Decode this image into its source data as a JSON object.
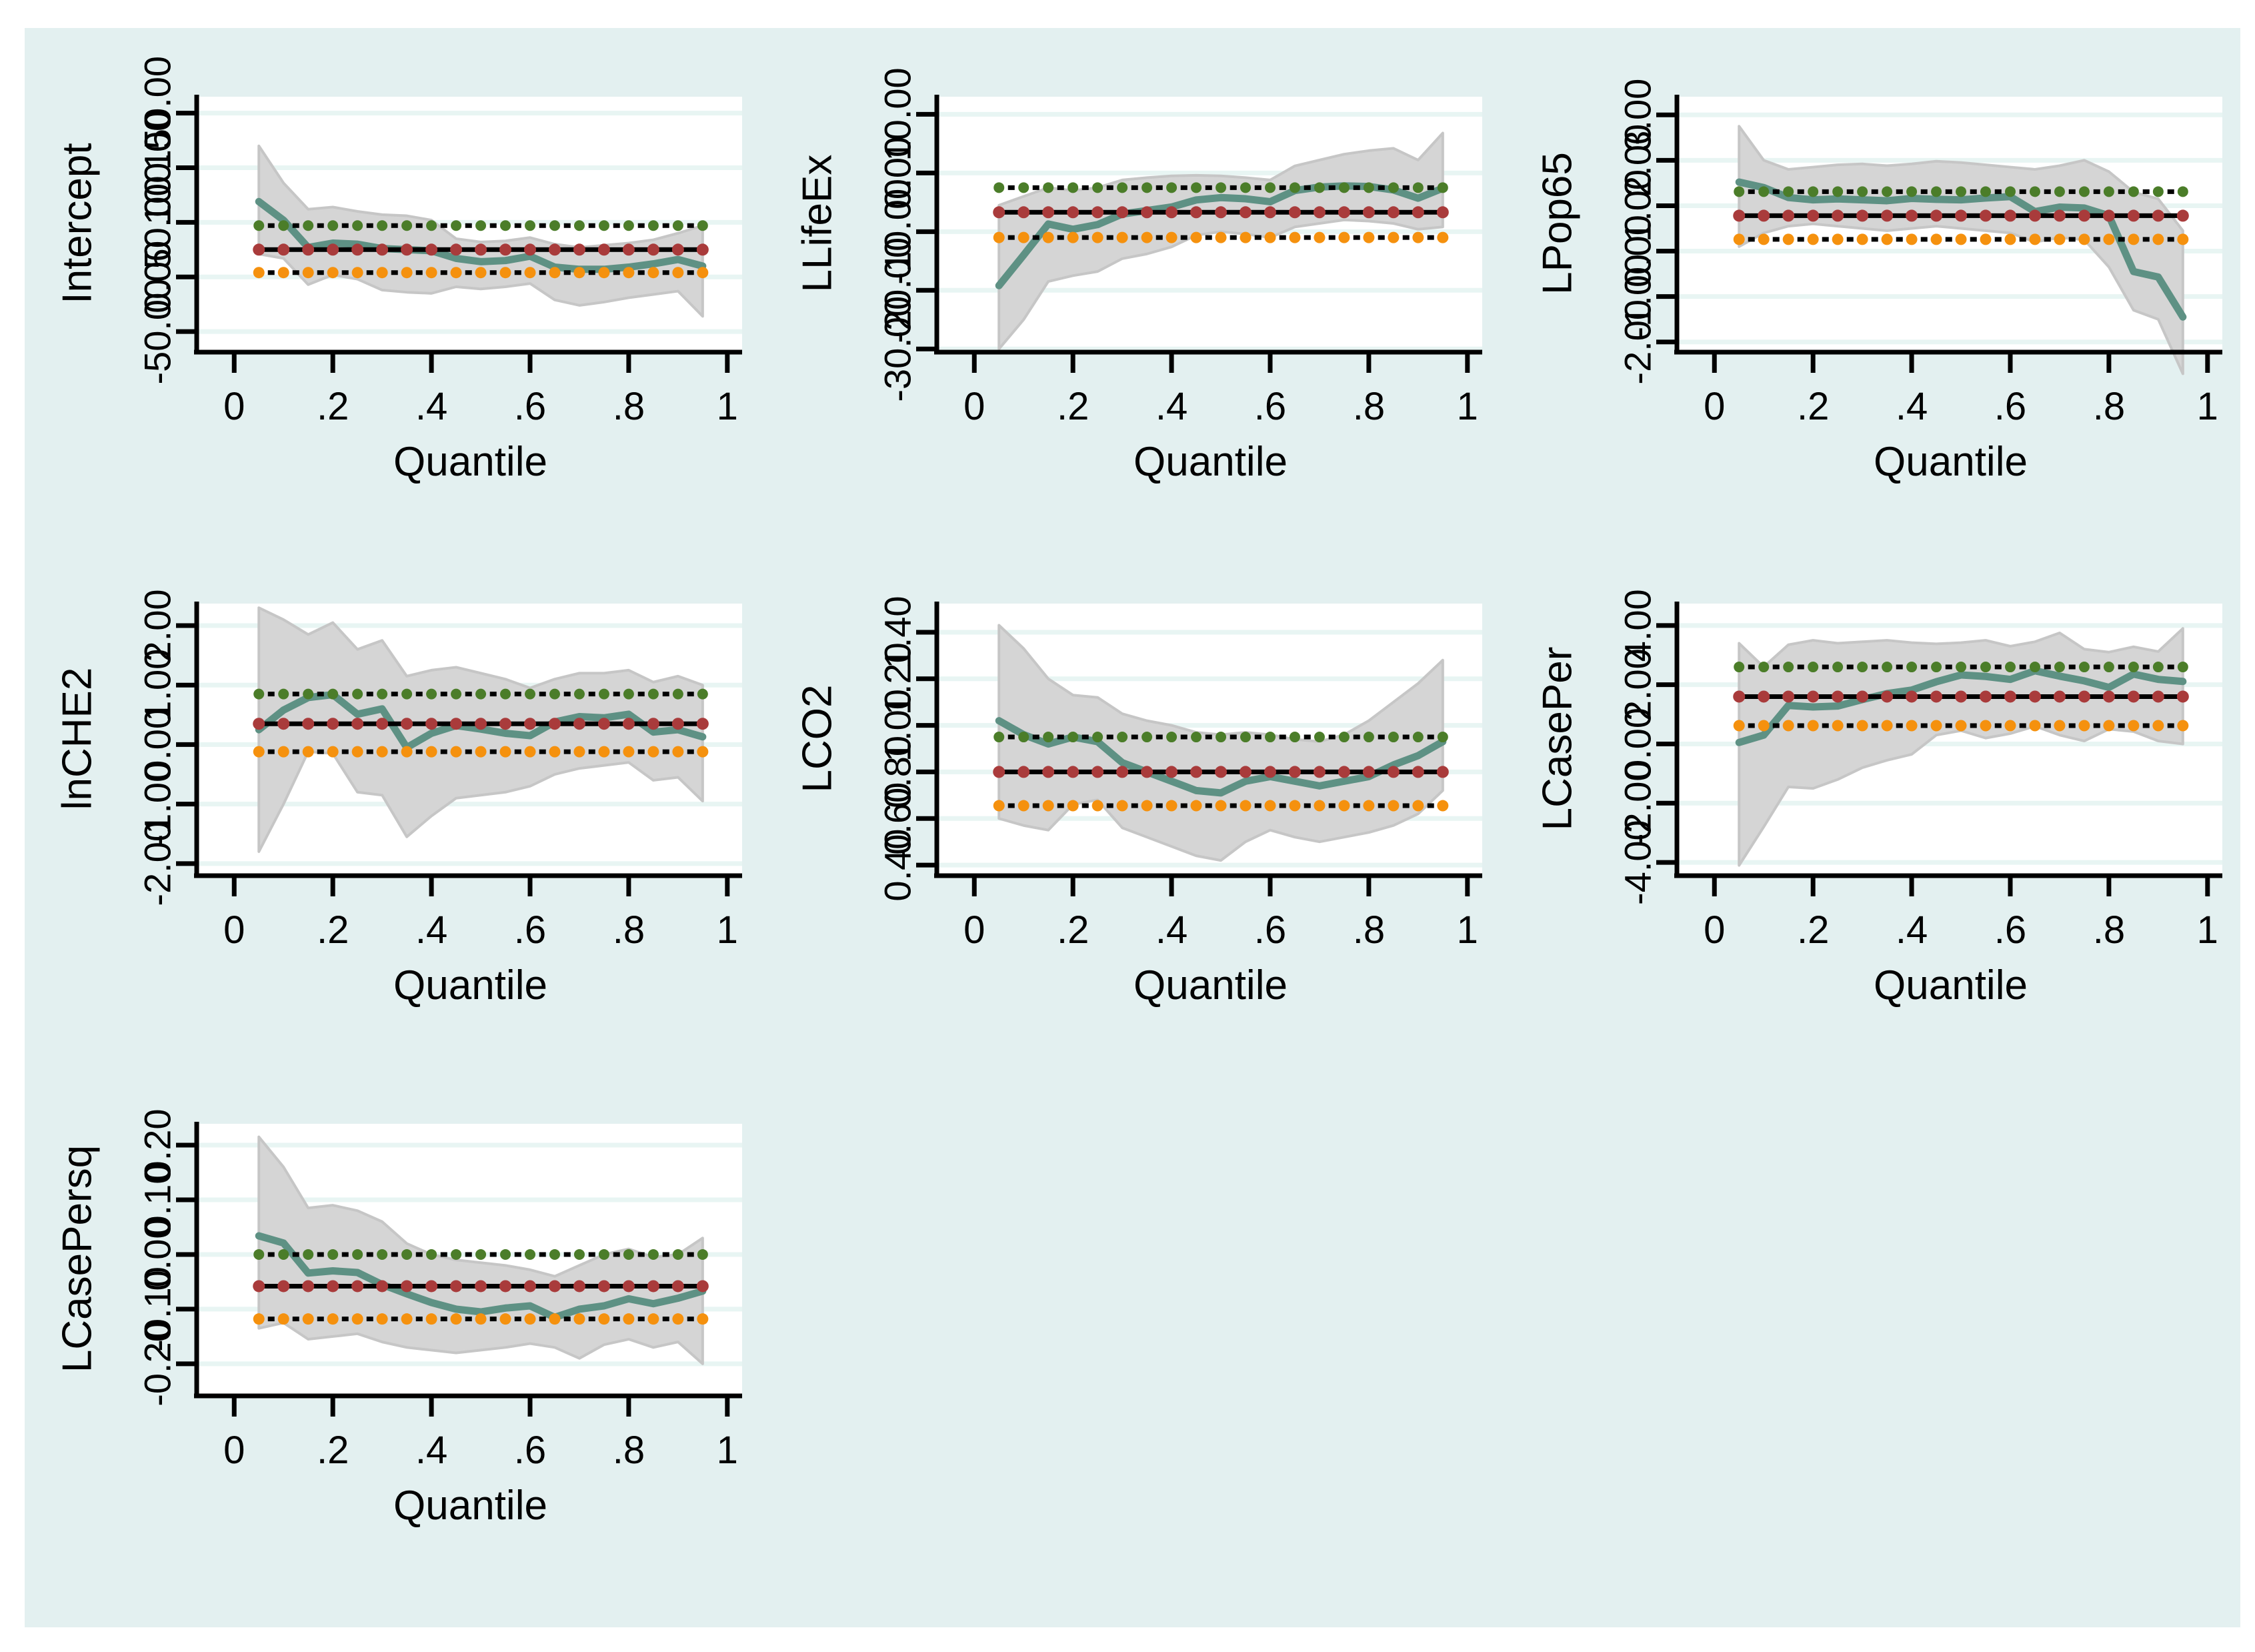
{
  "figure": {
    "xlabel": "Quantile",
    "xticks": [
      0,
      0.2,
      0.4,
      0.6,
      0.8,
      1
    ],
    "xtick_labels": [
      "0",
      ".2",
      ".4",
      ".6",
      ".8",
      "1"
    ],
    "quantiles": [
      0.05,
      0.1,
      0.15,
      0.2,
      0.25,
      0.3,
      0.35,
      0.4,
      0.45,
      0.5,
      0.55,
      0.6,
      0.65,
      0.7,
      0.75,
      0.8,
      0.85,
      0.9,
      0.95
    ],
    "colors": {
      "canvas_bg": "#e3f0f0",
      "plot_bg": "#ffffff",
      "grid": "#e8f5f3",
      "band_fill": "#d5d5d5",
      "band_edge": "#c6c6c6",
      "coefficient_line": "#5e9184",
      "ols_dot": "#a93b3b",
      "upper_dot": "#4b7d29",
      "lower_dot": "#f5910e",
      "dash": "#000000",
      "axis": "#000000"
    }
  },
  "chart_data": [
    {
      "type": "line",
      "title": "Intercept",
      "ylabel": "Intercept",
      "yticks": [
        150,
        100,
        50,
        0,
        -50
      ],
      "ylim": [
        165,
        -67
      ],
      "coef": [
        69,
        52,
        27,
        31,
        30,
        26,
        25,
        24,
        17,
        14,
        15,
        19,
        9,
        7,
        7,
        9,
        12,
        16,
        10
      ],
      "ci_upper": [
        120,
        86,
        62,
        64,
        60,
        57,
        56,
        52,
        35,
        32,
        33,
        36,
        30,
        27,
        29,
        31,
        34,
        40,
        47
      ],
      "ci_lower": [
        21,
        17,
        -7,
        2,
        -2,
        -12,
        -14,
        -15,
        -9,
        -11,
        -9,
        -6,
        -21,
        -26,
        -23,
        -19,
        -16,
        -13,
        -36
      ],
      "ols": 25,
      "ols_upper": 47,
      "ols_lower": 4
    },
    {
      "type": "line",
      "title": "LLifeEx",
      "ylabel": "LLifeEx",
      "yticks": [
        10,
        0,
        -10,
        -20,
        -30
      ],
      "ylim": [
        13,
        -30.2
      ],
      "coef": [
        -19.2,
        -14,
        -8.7,
        -9.6,
        -8.8,
        -7,
        -6.4,
        -5.8,
        -4.6,
        -4.2,
        -4.4,
        -4.9,
        -3,
        -2.4,
        -2.2,
        -2.3,
        -2.9,
        -4.3,
        -2.6
      ],
      "ci_upper": [
        -5.5,
        -4,
        -2.5,
        -3,
        -2.5,
        -1.2,
        -0.8,
        -0.5,
        -0.4,
        -0.5,
        -0.8,
        -1.2,
        1.2,
        2.2,
        3.2,
        3.8,
        4.2,
        2.2,
        6.8
      ],
      "ci_lower": [
        -30,
        -25,
        -18.5,
        -17.5,
        -16.8,
        -14.6,
        -13.8,
        -12.6,
        -10.6,
        -10,
        -10.4,
        -11,
        -9.2,
        -8.6,
        -8,
        -8.2,
        -8.6,
        -9.6,
        -9.2
      ],
      "ols": -6.7,
      "ols_upper": -2.5,
      "ols_lower": -11
    },
    {
      "type": "line",
      "title": "LPop65",
      "ylabel": "LPop65",
      "yticks": [
        3,
        2,
        1,
        0,
        -1,
        -2
      ],
      "ylim": [
        3.4,
        -2.18
      ],
      "coef": [
        1.52,
        1.4,
        1.18,
        1.13,
        1.15,
        1.13,
        1.11,
        1.16,
        1.14,
        1.13,
        1.17,
        1.2,
        0.87,
        0.97,
        0.95,
        0.78,
        -0.45,
        -0.57,
        -1.45
      ],
      "ci_upper": [
        2.75,
        2,
        1.8,
        1.85,
        1.9,
        1.92,
        1.88,
        1.92,
        1.98,
        1.95,
        1.9,
        1.85,
        1.8,
        1.88,
        2,
        1.75,
        1.3,
        1.15,
        0.45
      ],
      "ci_lower": [
        0.1,
        0.4,
        0.55,
        0.6,
        0.55,
        0.5,
        0.45,
        0.5,
        0.55,
        0.5,
        0.45,
        0.4,
        0.2,
        0.3,
        0.25,
        -0.35,
        -1.3,
        -1.5,
        -2.7
      ],
      "ols": 0.78,
      "ols_upper": 1.31,
      "ols_lower": 0.26
    },
    {
      "type": "line",
      "title": "lnCHE2",
      "ylabel": "lnCHE2",
      "yticks": [
        2,
        1,
        0,
        -1,
        -2
      ],
      "ylim": [
        2.37,
        -2.17
      ],
      "coef": [
        0.25,
        0.58,
        0.79,
        0.84,
        0.51,
        0.6,
        -0.05,
        0.19,
        0.32,
        0.26,
        0.19,
        0.15,
        0.38,
        0.47,
        0.45,
        0.51,
        0.21,
        0.25,
        0.13
      ],
      "ci_upper": [
        2.3,
        2.1,
        1.85,
        2.05,
        1.6,
        1.75,
        1.15,
        1.25,
        1.3,
        1.2,
        1.1,
        0.95,
        1.1,
        1.2,
        1.2,
        1.25,
        1.05,
        1.15,
        1
      ],
      "ci_lower": [
        -1.8,
        -1,
        -0.12,
        -0.15,
        -0.8,
        -0.85,
        -1.55,
        -1.2,
        -0.9,
        -0.85,
        -0.8,
        -0.7,
        -0.5,
        -0.4,
        -0.35,
        -0.3,
        -0.6,
        -0.55,
        -0.95
      ],
      "ols": 0.35,
      "ols_upper": 0.85,
      "ols_lower": -0.12
    },
    {
      "type": "line",
      "title": "LCO2",
      "ylabel": "LCO2",
      "yticks": [
        1.4,
        1.2,
        1,
        0.8,
        0.6,
        0.4
      ],
      "ylim": [
        1.523,
        0.363
      ],
      "coef": [
        1.02,
        0.96,
        0.92,
        0.95,
        0.93,
        0.84,
        0.8,
        0.76,
        0.72,
        0.71,
        0.76,
        0.78,
        0.76,
        0.74,
        0.76,
        0.78,
        0.83,
        0.87,
        0.93
      ],
      "ci_upper": [
        1.43,
        1.33,
        1.2,
        1.13,
        1.12,
        1.05,
        1.02,
        1,
        0.97,
        0.96,
        0.97,
        0.96,
        0.94,
        0.93,
        0.96,
        1.02,
        1.1,
        1.18,
        1.28
      ],
      "ci_lower": [
        0.6,
        0.57,
        0.55,
        0.66,
        0.68,
        0.56,
        0.52,
        0.48,
        0.44,
        0.42,
        0.5,
        0.55,
        0.52,
        0.5,
        0.52,
        0.54,
        0.57,
        0.62,
        0.72
      ],
      "ols": 0.8,
      "ols_upper": 0.95,
      "ols_lower": 0.655
    },
    {
      "type": "line",
      "title": "LCasePer",
      "ylabel": "LCasePer",
      "yticks": [
        4,
        2,
        0,
        -2,
        -4
      ],
      "ylim": [
        4.74,
        -4.38
      ],
      "coef": [
        0.05,
        0.3,
        1.3,
        1.25,
        1.28,
        1.5,
        1.7,
        1.82,
        2.1,
        2.33,
        2.28,
        2.18,
        2.47,
        2.29,
        2.13,
        1.91,
        2.36,
        2.18,
        2.11
      ],
      "ci_upper": [
        3.4,
        2.6,
        3.35,
        3.5,
        3.4,
        3.45,
        3.5,
        3.42,
        3.38,
        3.42,
        3.5,
        3.3,
        3.45,
        3.75,
        3.2,
        3.1,
        3.28,
        3.12,
        3.9
      ],
      "ci_lower": [
        -4.1,
        -2.8,
        -1.45,
        -1.5,
        -1.2,
        -0.8,
        -0.55,
        -0.35,
        0.3,
        0.45,
        0.2,
        0.35,
        0.6,
        0.3,
        0.1,
        0.5,
        0.42,
        0.1,
        0
      ],
      "ols": 1.6,
      "ols_upper": 2.6,
      "ols_lower": 0.62
    },
    {
      "type": "line",
      "title": "LCasePersq",
      "ylabel": "LCasePersq",
      "yticks": [
        0.2,
        0.1,
        0,
        -0.1,
        -0.2
      ],
      "ylim": [
        0.239,
        -0.255
      ],
      "coef": [
        0.034,
        0.021,
        -0.034,
        -0.03,
        -0.033,
        -0.055,
        -0.072,
        -0.088,
        -0.1,
        -0.105,
        -0.098,
        -0.094,
        -0.115,
        -0.1,
        -0.094,
        -0.081,
        -0.09,
        -0.08,
        -0.067
      ],
      "ci_upper": [
        0.215,
        0.16,
        0.085,
        0.09,
        0.08,
        0.06,
        0.02,
        0,
        -0.01,
        -0.015,
        -0.02,
        -0.028,
        -0.04,
        -0.02,
        0,
        0.01,
        -0.005,
        0,
        0.03
      ],
      "ci_lower": [
        -0.135,
        -0.125,
        -0.155,
        -0.15,
        -0.145,
        -0.16,
        -0.17,
        -0.175,
        -0.18,
        -0.175,
        -0.17,
        -0.163,
        -0.17,
        -0.19,
        -0.165,
        -0.155,
        -0.17,
        -0.16,
        -0.2
      ],
      "ols": -0.058,
      "ols_upper": 0,
      "ols_lower": -0.118
    }
  ]
}
